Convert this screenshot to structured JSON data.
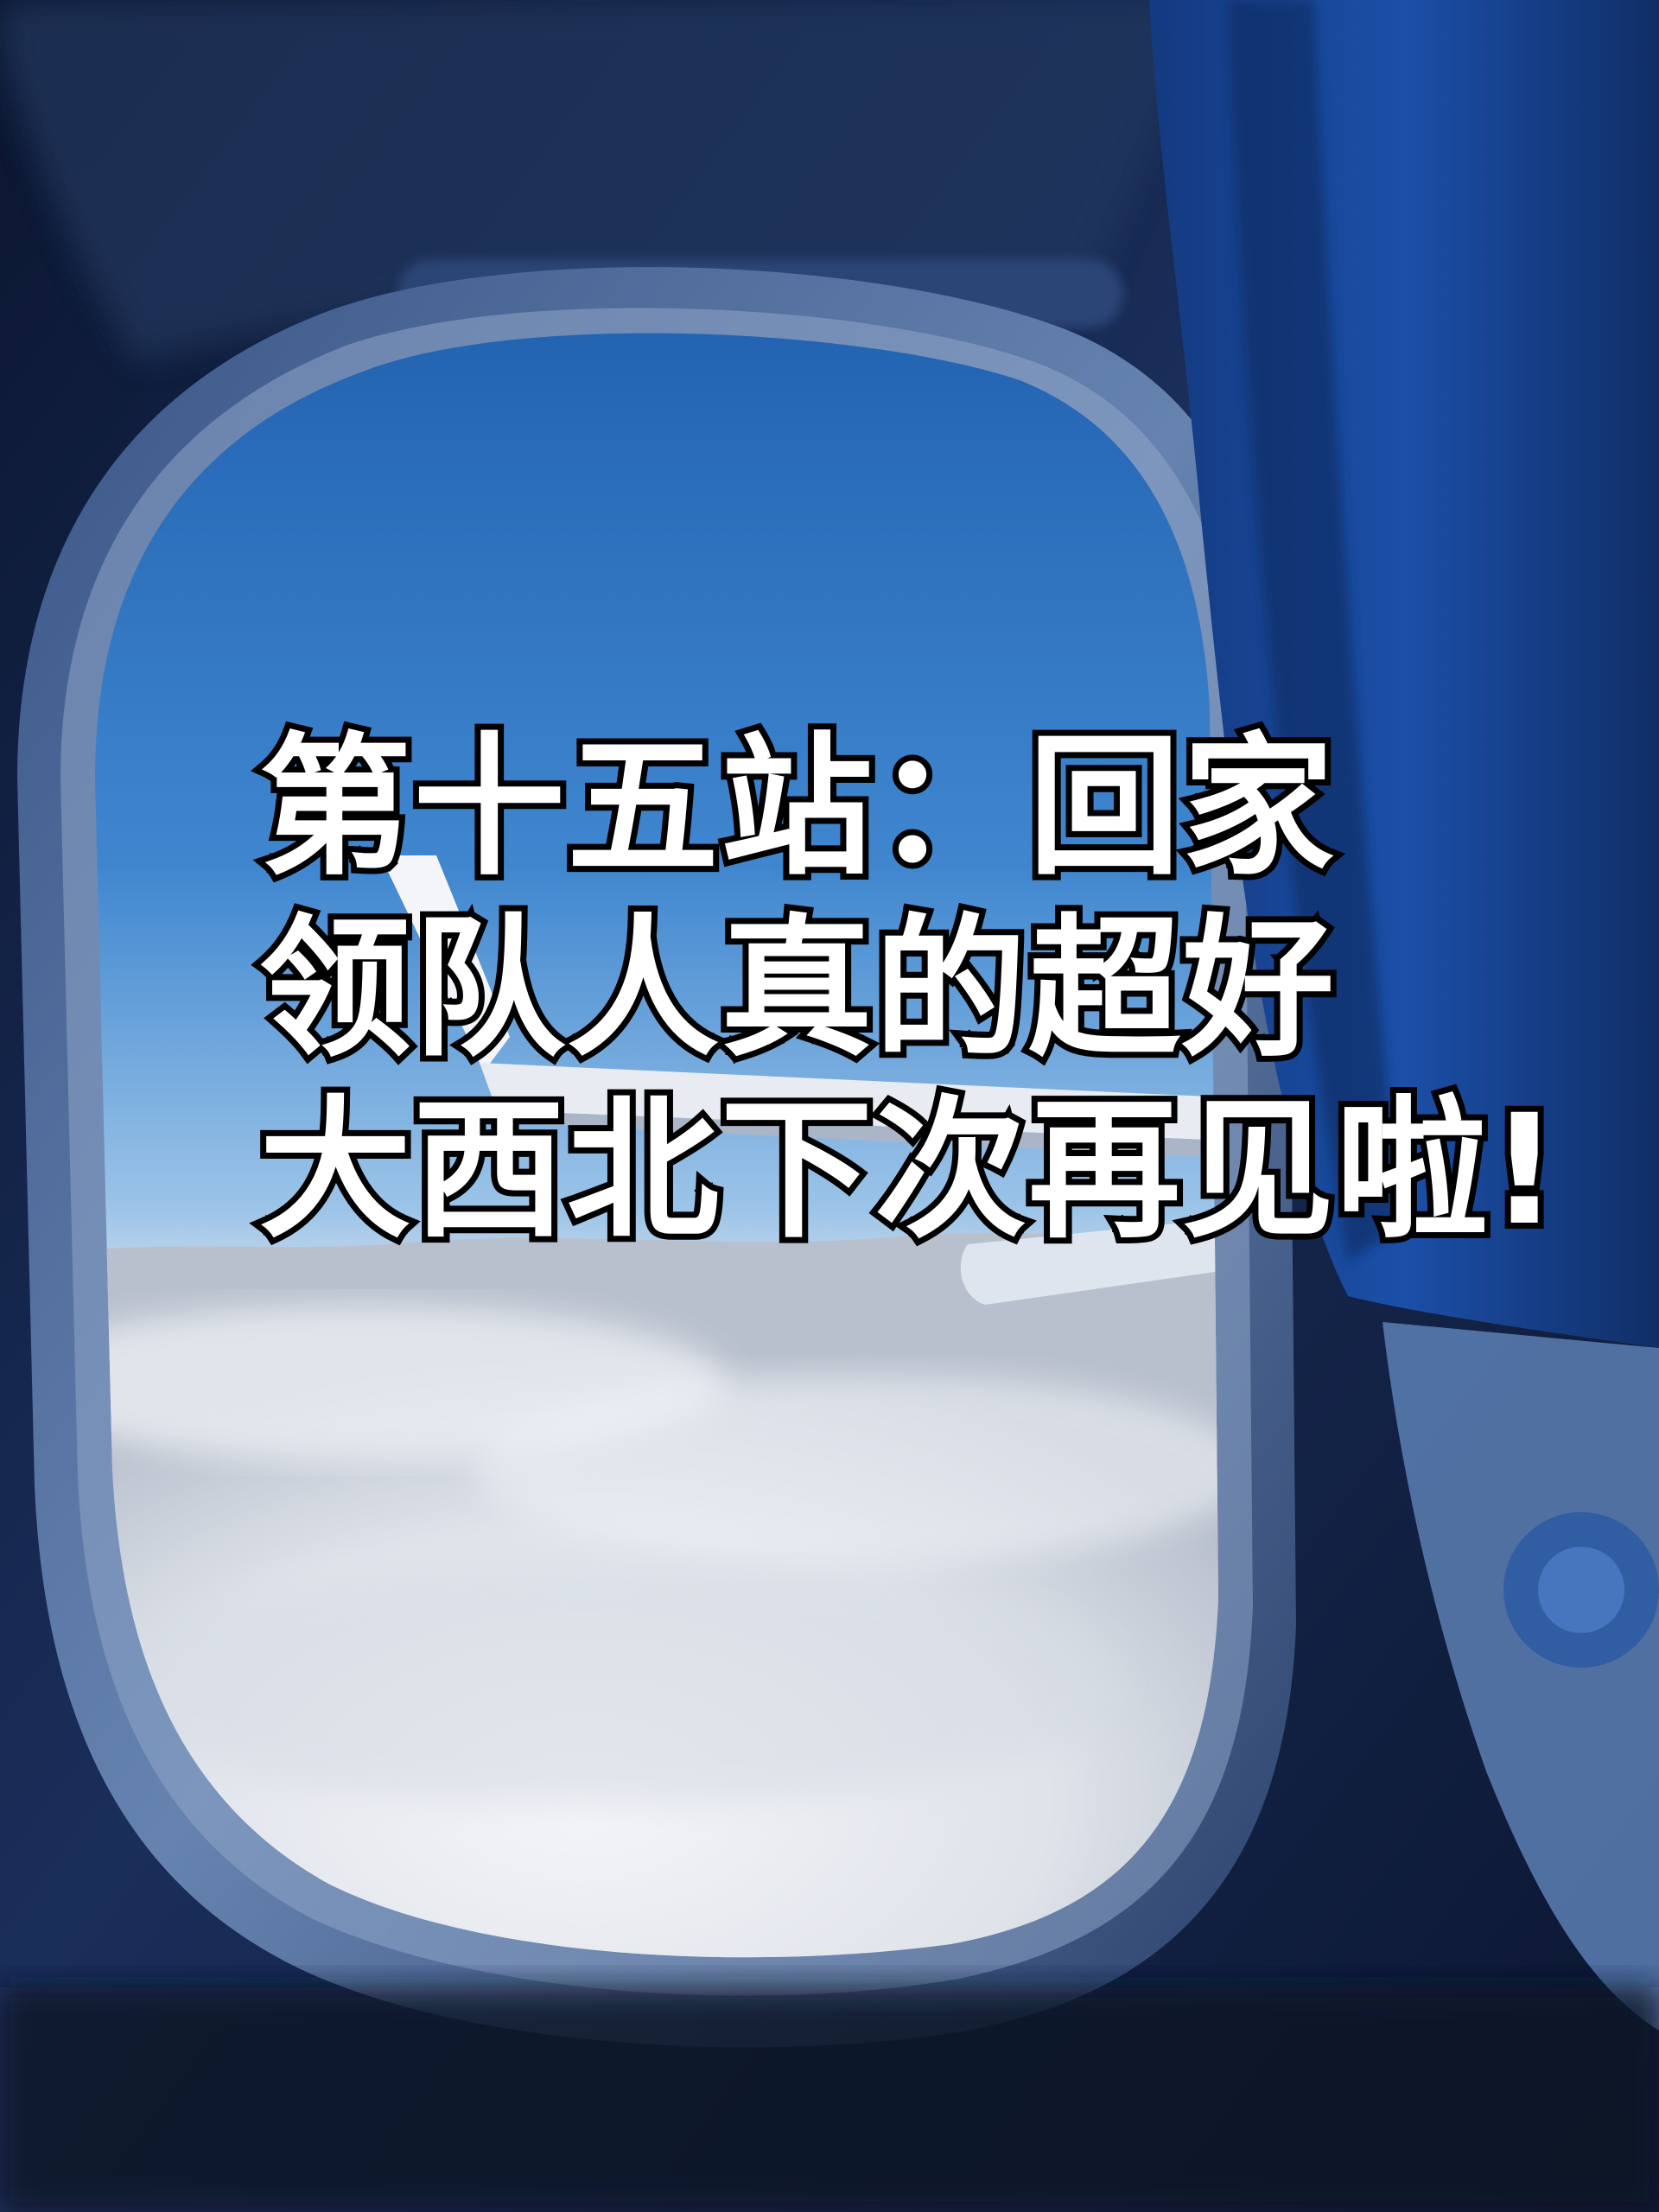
{
  "caption": {
    "lines": [
      "第十五站：回家",
      "领队人真的超好",
      "大西北下次再见啦!"
    ]
  },
  "colors": {
    "sky_top": "#1f5fae",
    "sky_mid": "#3f86cf",
    "sky_horizon": "#9cc4e8",
    "cloud": "#e6e9ef",
    "cabin_wall": "#1a2e5a",
    "cabin_dark": "#0b1630",
    "window_frame": "#4f6f9e",
    "seat_blue": "#1b4fa8",
    "text_fill": "#ffffff",
    "text_stroke": "#000000"
  }
}
